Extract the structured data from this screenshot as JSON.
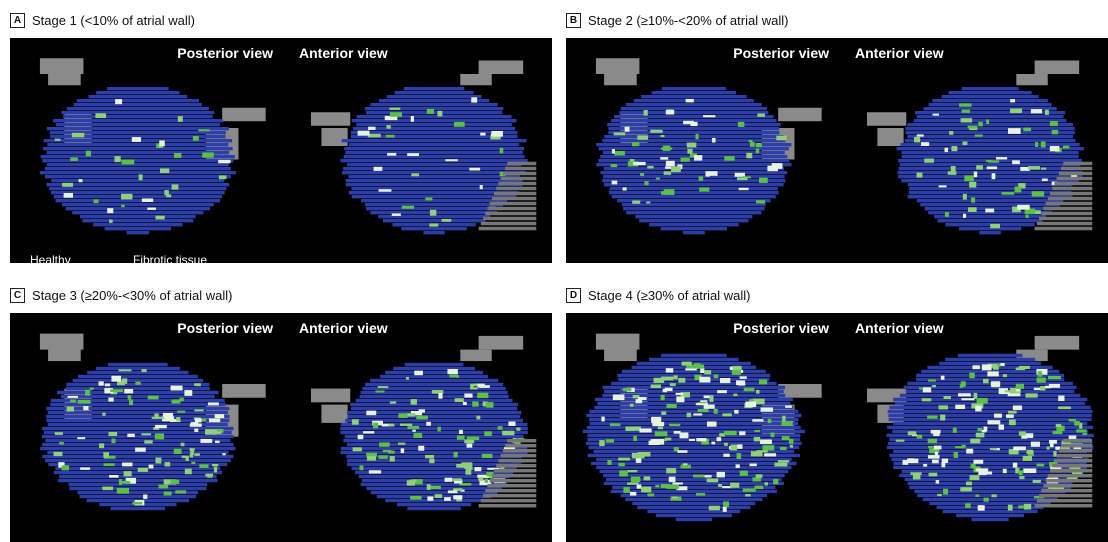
{
  "stages": [
    {
      "letter": "A",
      "title": "Stage 1 (<10% of atrial wall)",
      "posterior_label": "Posterior view",
      "anterior_label": "Anterior view"
    },
    {
      "letter": "B",
      "title": "Stage 2 (≥10%-<20% of atrial wall)",
      "posterior_label": "Posterior view",
      "anterior_label": "Anterior view"
    },
    {
      "letter": "C",
      "title": "Stage 3 (≥20%-<30% of atrial wall)",
      "posterior_label": "Posterior view",
      "anterior_label": "Anterior view"
    },
    {
      "letter": "D",
      "title": "Stage 4 (≥30% of atrial wall)",
      "posterior_label": "Posterior view",
      "anterior_label": "Anterior view"
    }
  ],
  "legend": {
    "healthy_label": "Healthy",
    "fibrotic_label": "Fibrotic tissue"
  },
  "colors": {
    "healthy": "#2d3ea8",
    "fibrotic": "#5cbf4a",
    "tissue_gray": "#8a8a8a",
    "background": "#000000"
  }
}
